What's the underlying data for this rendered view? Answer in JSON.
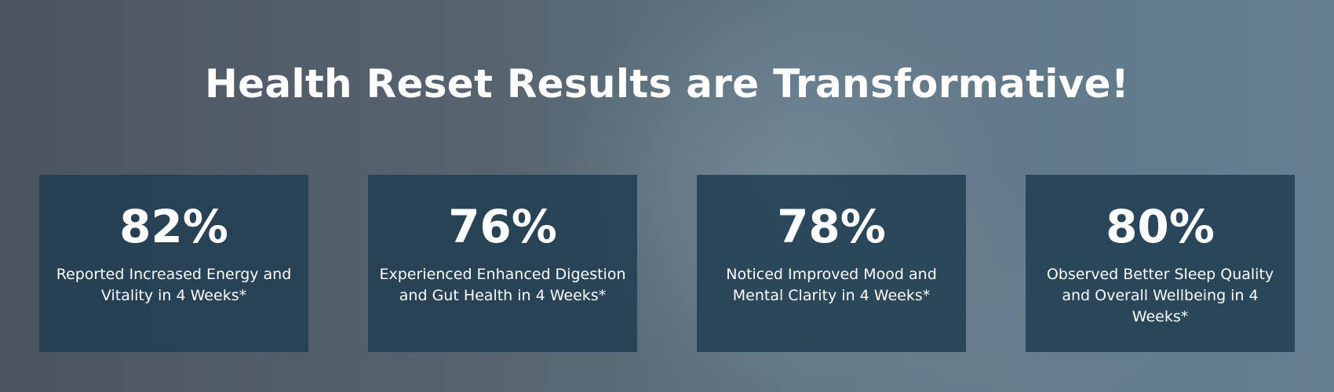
{
  "header": {
    "title": "Health Reset Results are Transformative!"
  },
  "stats": [
    {
      "value": "82%",
      "label": "Reported Increased Energy and Vitality in 4 Weeks*"
    },
    {
      "value": "76%",
      "label": "Experienced Enhanced Digestion and Gut Health in 4 Weeks*"
    },
    {
      "value": "78%",
      "label": "Noticed Improved Mood and Mental Clarity in 4 Weeks*"
    },
    {
      "value": "80%",
      "label": "Observed Better Sleep Quality and Overall Wellbeing in 4 Weeks*"
    }
  ]
}
